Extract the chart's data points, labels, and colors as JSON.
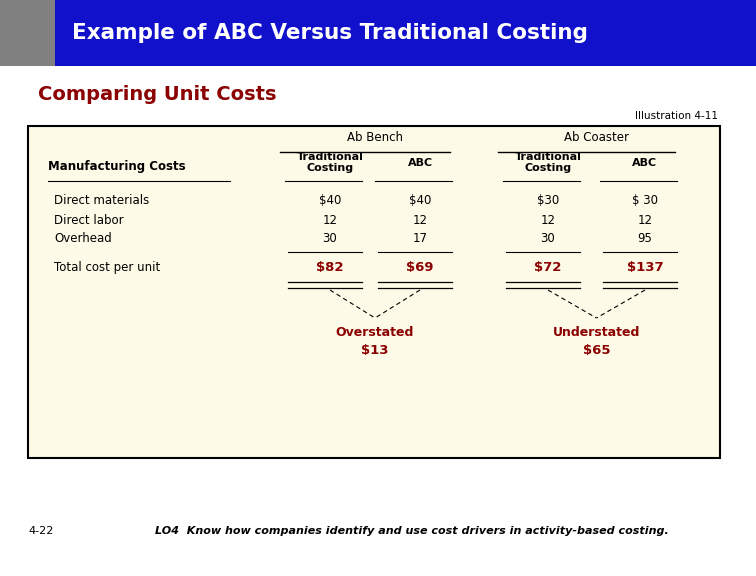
{
  "title": "Example of ABC Versus Traditional Costing",
  "subtitle": "Comparing Unit Costs",
  "illustration": "Illustration 4-11",
  "footer_left": "4-22",
  "footer_right": "LO4  Know how companies identify and use cost drivers in activity-based costing.",
  "header_bg": "#1111CC",
  "header_gray": "#808080",
  "subtitle_color": "#8B0000",
  "table_bg": "#FDFAE8",
  "table_border": "#000000",
  "col1_header": "Manufacturing Costs",
  "col_groups": [
    "Ab Bench",
    "Ab Coaster"
  ],
  "col_subheaders": [
    "Traditional\nCosting",
    "ABC",
    "Traditional\nCosting",
    "ABC"
  ],
  "rows": [
    [
      "Direct materials",
      "$40",
      "$40",
      "$30",
      "$ 30"
    ],
    [
      "Direct labor",
      "12",
      "12",
      "12",
      "12"
    ],
    [
      "Overhead",
      "30",
      "17",
      "30",
      "95"
    ]
  ],
  "total_row": [
    "Total cost per unit",
    "$82",
    "$69",
    "$72",
    "$137"
  ],
  "overstated_label": "Overstated",
  "overstated_amount": "$13",
  "understated_label": "Understated",
  "understated_amount": "$65",
  "total_color": "#8B0000",
  "annotation_color": "#8B0000",
  "bg_color": "#FFFFFF"
}
